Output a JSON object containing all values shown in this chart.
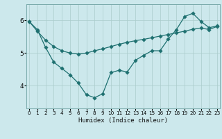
{
  "xlabel": "Humidex (Indice chaleur)",
  "bg_color": "#cce8ec",
  "line_color": "#1e7070",
  "grid_color_major": "#aacccc",
  "grid_color_minor": "#bbdddd",
  "x_ticks": [
    0,
    1,
    2,
    3,
    4,
    5,
    6,
    7,
    8,
    9,
    10,
    11,
    12,
    13,
    14,
    15,
    16,
    17,
    18,
    19,
    20,
    21,
    22,
    23
  ],
  "y_ticks": [
    4,
    5,
    6
  ],
  "ylim": [
    3.3,
    6.5
  ],
  "xlim": [
    -0.3,
    23.3
  ],
  "line1_x": [
    0,
    1,
    2,
    3,
    4,
    5,
    6,
    7,
    8,
    9,
    10,
    11,
    12,
    13,
    14,
    15,
    16,
    17,
    18,
    19,
    20,
    21,
    22,
    23
  ],
  "line1_y": [
    5.97,
    5.72,
    5.18,
    4.72,
    4.53,
    4.33,
    4.08,
    3.72,
    3.63,
    3.75,
    4.4,
    4.47,
    4.42,
    4.78,
    4.93,
    5.07,
    5.07,
    5.43,
    5.72,
    6.12,
    6.22,
    5.97,
    5.78,
    5.83
  ],
  "line2_x": [
    0,
    1,
    2,
    3,
    4,
    5,
    6,
    7,
    8,
    9,
    10,
    11,
    12,
    13,
    14,
    15,
    16,
    17,
    18,
    19,
    20,
    21,
    22,
    23
  ],
  "line2_y": [
    5.97,
    5.67,
    5.4,
    5.2,
    5.07,
    5.0,
    4.97,
    5.0,
    5.07,
    5.13,
    5.2,
    5.27,
    5.33,
    5.38,
    5.42,
    5.47,
    5.52,
    5.57,
    5.62,
    5.67,
    5.73,
    5.77,
    5.72,
    5.82
  ]
}
